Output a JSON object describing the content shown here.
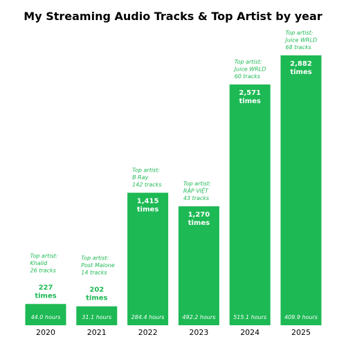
{
  "title": "My Streaming Audio Tracks & Top Artist by year",
  "colors": {
    "bar": "#1db954",
    "label_on_bar": "#ffffff",
    "label_above_bar": "#1db954"
  },
  "chart_data": {
    "type": "bar",
    "title": "My Streaming Audio Tracks & Top Artist by year",
    "xlabel": "",
    "ylabel": "",
    "categories": [
      "2020",
      "2021",
      "2022",
      "2023",
      "2024",
      "2025"
    ],
    "values": [
      227,
      202,
      1415,
      1270,
      2571,
      2882
    ],
    "value_labels": [
      "227",
      "202",
      "1,415",
      "1,270",
      "2,571",
      "2,882"
    ],
    "value_unit": "times",
    "hours": [
      "44.0 hours",
      "31.1 hours",
      "284.4 hours",
      "492.2 hours",
      "515.1 hours",
      "409.9 hours"
    ],
    "artist_prefix": "Top artist:",
    "top_artists": [
      "Khalid",
      "Post Malone",
      "B Ray",
      "RẬP VIỆT",
      "Juice WRLD",
      "Juice WRLD"
    ],
    "artist_tracks": [
      "26 tracks",
      "14 tracks",
      "142 tracks",
      "43 tracks",
      "60 tracks",
      "68 tracks"
    ],
    "ylim": [
      0,
      2882
    ],
    "grid": false,
    "legend": "none"
  }
}
